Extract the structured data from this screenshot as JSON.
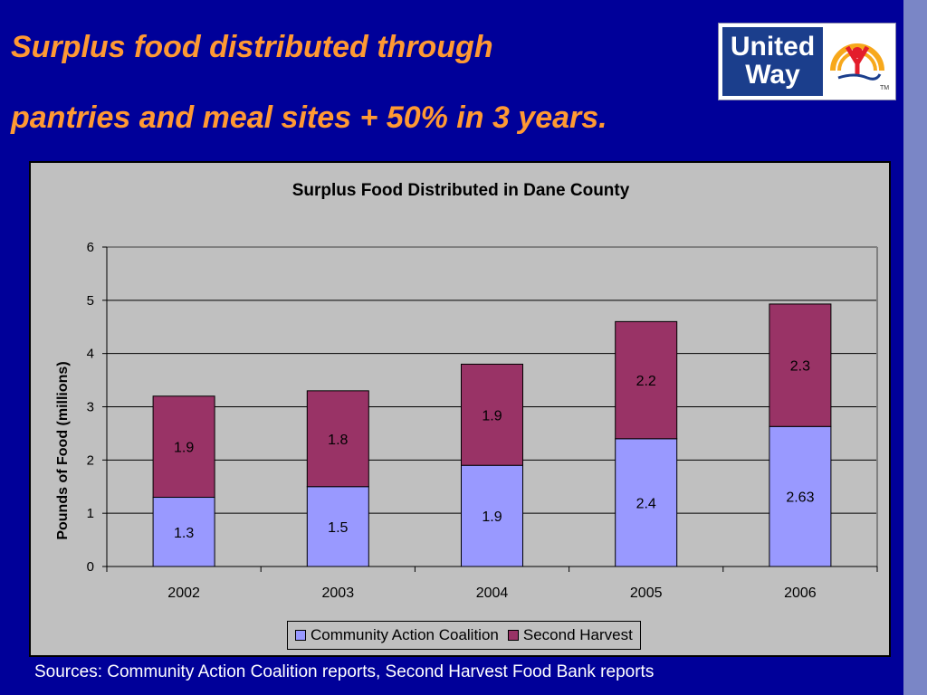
{
  "slide": {
    "title_line1": "Surplus food distributed through",
    "title_line2": "pantries and meal sites + 50% in 3 years.",
    "sources": "Sources: Community Action Coalition reports, Second Harvest Food Bank reports"
  },
  "logo": {
    "line1": "United",
    "line2": "Way",
    "tm": "TM",
    "icon": "united-way-hand-rainbow-icon"
  },
  "colors": {
    "background": "#000099",
    "title": "#ff9933",
    "series_cac": "#9999ff",
    "series_sh": "#993366",
    "plot_bg": "#c0c0c0"
  },
  "chart_data": {
    "type": "bar",
    "stacked": true,
    "title": "Surplus Food Distributed in Dane County",
    "xlabel": "",
    "ylabel": "Pounds of Food (millions)",
    "categories": [
      "2002",
      "2003",
      "2004",
      "2005",
      "2006"
    ],
    "ylim": [
      0,
      6
    ],
    "yticks": [
      "0",
      "1",
      "2",
      "3",
      "4",
      "5",
      "6"
    ],
    "grid": true,
    "legend_position": "bottom",
    "series": [
      {
        "name": "Community Action Coalition",
        "values": [
          1.3,
          1.5,
          1.9,
          2.4,
          2.63
        ],
        "labels": [
          "1.3",
          "1.5",
          "1.9",
          "2.4",
          "2.63"
        ],
        "color": "#9999ff"
      },
      {
        "name": "Second Harvest",
        "values": [
          1.9,
          1.8,
          1.9,
          2.2,
          2.3
        ],
        "labels": [
          "1.9",
          "1.8",
          "1.9",
          "2.2",
          "2.3"
        ],
        "color": "#993366"
      }
    ]
  }
}
